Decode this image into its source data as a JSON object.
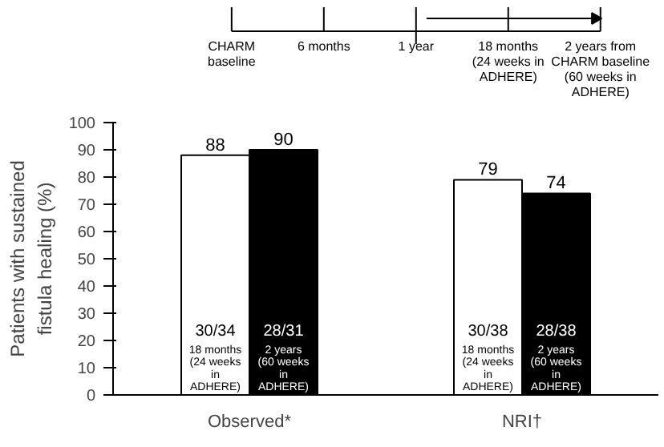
{
  "chart_data": {
    "type": "bar",
    "ylabel": "Patients with sustained\nfistula healing (%)",
    "categories": [
      "Observed*",
      "NRI†"
    ],
    "series": [
      {
        "color": "#ffffff",
        "values": [
          88,
          79
        ]
      },
      {
        "color": "#000000",
        "values": [
          90,
          74
        ]
      }
    ],
    "ylim": [
      0,
      100
    ],
    "yticks": [
      0,
      10,
      20,
      30,
      40,
      50,
      60,
      70,
      80,
      90,
      100
    ],
    "data_labels": true,
    "grid": false,
    "annotations": [
      "30/34\n18 months\n(24 weeks\nin\nADHERE)",
      "30/38\n18 months\n(24 weeks\nin\nADHERE)",
      "28/31\n2 years\n(60 weeks\nin\nADHERE)",
      "28/38\n2 years\n(60 weeks\nin\nADHERE)",
      "CHARM\nbaseline",
      "6 months",
      "1 year",
      "18 months\n(24 weeks in\nADHERE)",
      "2 years from\nCHARM baseline\n(60 weeks in\nADHERE)"
    ]
  }
}
